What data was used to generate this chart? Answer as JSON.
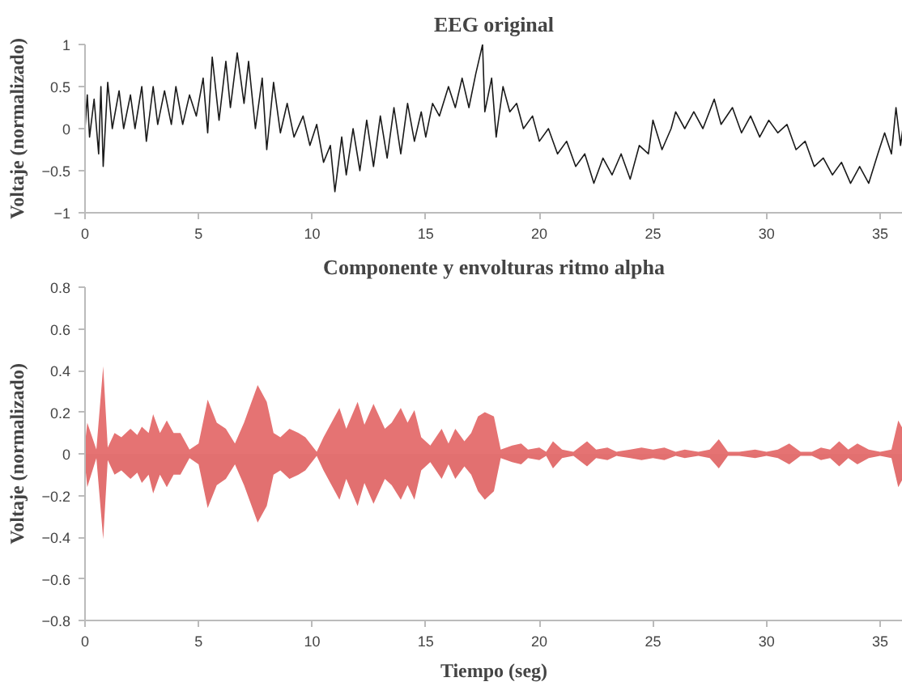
{
  "chart_data": [
    {
      "type": "line",
      "title": "EEG original",
      "ylabel": "Voltaje (normalizado)",
      "xlim": [
        0,
        36
      ],
      "ylim": [
        -1,
        1
      ],
      "xticks": [
        0,
        5,
        10,
        15,
        20,
        25,
        30,
        35
      ],
      "yticks": [
        -1,
        -0.5,
        0,
        0.5,
        1
      ],
      "grid": false,
      "marker": "none",
      "line_style": "solid",
      "series": [
        {
          "color": "#1a1a1a",
          "x": [
            0,
            0.1,
            0.2,
            0.4,
            0.6,
            0.7,
            0.8,
            1.0,
            1.2,
            1.5,
            1.7,
            2.0,
            2.2,
            2.5,
            2.7,
            3.0,
            3.2,
            3.5,
            3.8,
            4.0,
            4.3,
            4.6,
            4.9,
            5.2,
            5.4,
            5.6,
            5.9,
            6.2,
            6.4,
            6.7,
            7.0,
            7.2,
            7.5,
            7.8,
            8.0,
            8.3,
            8.6,
            8.9,
            9.2,
            9.6,
            9.9,
            10.2,
            10.5,
            10.8,
            11.0,
            11.3,
            11.5,
            11.8,
            12.1,
            12.4,
            12.7,
            13.0,
            13.3,
            13.6,
            13.9,
            14.2,
            14.5,
            14.8,
            15.0,
            15.3,
            15.6,
            16.0,
            16.3,
            16.6,
            16.9,
            17.2,
            17.5,
            17.6,
            17.9,
            18.1,
            18.4,
            18.7,
            19.0,
            19.3,
            19.7,
            20.0,
            20.4,
            20.8,
            21.2,
            21.6,
            22.0,
            22.4,
            22.8,
            23.2,
            23.6,
            24.0,
            24.4,
            24.8,
            25.0,
            25.4,
            25.8,
            26.0,
            26.4,
            26.8,
            27.2,
            27.7,
            28.0,
            28.5,
            28.9,
            29.3,
            29.7,
            30.1,
            30.5,
            30.9,
            31.3,
            31.7,
            32.1,
            32.5,
            32.9,
            33.3,
            33.7,
            34.1,
            34.5,
            34.9,
            35.2,
            35.5,
            35.7,
            35.9,
            36.0
          ],
          "values": [
            0.0,
            0.4,
            -0.1,
            0.35,
            -0.3,
            0.5,
            -0.45,
            0.55,
            0.0,
            0.45,
            0.0,
            0.4,
            0.0,
            0.5,
            -0.15,
            0.5,
            0.05,
            0.45,
            0.05,
            0.5,
            0.05,
            0.4,
            0.15,
            0.6,
            -0.05,
            0.85,
            0.1,
            0.8,
            0.25,
            0.9,
            0.3,
            0.8,
            0.0,
            0.6,
            -0.25,
            0.55,
            -0.05,
            0.3,
            -0.1,
            0.15,
            -0.2,
            0.05,
            -0.4,
            -0.2,
            -0.75,
            -0.1,
            -0.55,
            0.0,
            -0.5,
            0.1,
            -0.45,
            0.15,
            -0.35,
            0.25,
            -0.3,
            0.3,
            -0.15,
            0.2,
            -0.1,
            0.3,
            0.15,
            0.5,
            0.25,
            0.6,
            0.25,
            0.65,
            1.0,
            0.2,
            0.6,
            -0.1,
            0.5,
            0.2,
            0.3,
            0.0,
            0.15,
            -0.15,
            0.0,
            -0.3,
            -0.15,
            -0.45,
            -0.3,
            -0.65,
            -0.35,
            -0.55,
            -0.3,
            -0.6,
            -0.2,
            -0.3,
            0.1,
            -0.25,
            0.0,
            0.2,
            0.0,
            0.2,
            0.0,
            0.35,
            0.05,
            0.25,
            -0.05,
            0.15,
            -0.1,
            0.1,
            -0.05,
            0.05,
            -0.25,
            -0.15,
            -0.45,
            -0.35,
            -0.55,
            -0.4,
            -0.65,
            -0.45,
            -0.65,
            -0.3,
            -0.05,
            -0.3,
            0.25,
            -0.2,
            0.0
          ]
        }
      ]
    },
    {
      "type": "area",
      "title": "Componente y envolturas ritmo alpha",
      "xlabel": "Tiempo (seg)",
      "ylabel": "Voltaje (normalizado)",
      "xlim": [
        0,
        36
      ],
      "ylim": [
        -0.8,
        0.8
      ],
      "xticks": [
        0,
        5,
        10,
        15,
        20,
        25,
        30,
        35
      ],
      "yticks": [
        -0.8,
        -0.6,
        -0.4,
        -0.2,
        0,
        0.2,
        0.4,
        0.6,
        0.8
      ],
      "grid": false,
      "x": [
        0,
        0.1,
        0.5,
        0.8,
        1.0,
        1.3,
        1.6,
        2.0,
        2.3,
        2.5,
        2.8,
        3.0,
        3.3,
        3.6,
        3.9,
        4.2,
        4.6,
        5.0,
        5.4,
        5.8,
        6.2,
        6.6,
        7.0,
        7.6,
        8.0,
        8.3,
        8.6,
        9.0,
        9.4,
        9.7,
        10.2,
        10.5,
        11.2,
        11.5,
        12.0,
        12.3,
        12.7,
        13.2,
        13.5,
        13.9,
        14.2,
        14.5,
        14.8,
        15.2,
        15.7,
        16.0,
        16.3,
        16.7,
        17.0,
        17.3,
        17.6,
        18.0,
        18.3,
        18.8,
        19.2,
        19.5,
        20.0,
        20.3,
        20.6,
        21.0,
        21.5,
        22.1,
        22.5,
        23.0,
        23.4,
        24.0,
        24.5,
        25.0,
        25.5,
        26.0,
        26.4,
        27.0,
        27.5,
        27.9,
        28.3,
        28.8,
        29.5,
        30.0,
        30.5,
        31.0,
        31.5,
        32.0,
        32.4,
        32.8,
        33.2,
        33.6,
        34.0,
        34.5,
        35.0,
        35.5,
        35.8,
        36.0
      ],
      "series": [
        {
          "color": "#e57373",
          "values": [
            0.05,
            0.15,
            0.02,
            0.42,
            0.03,
            0.1,
            0.08,
            0.12,
            0.09,
            0.13,
            0.1,
            0.19,
            0.1,
            0.16,
            0.1,
            0.1,
            0.02,
            0.05,
            0.26,
            0.15,
            0.12,
            0.05,
            0.15,
            0.33,
            0.25,
            0.1,
            0.08,
            0.12,
            0.1,
            0.08,
            0.01,
            0.08,
            0.22,
            0.12,
            0.25,
            0.14,
            0.24,
            0.12,
            0.15,
            0.22,
            0.15,
            0.21,
            0.08,
            0.04,
            0.12,
            0.05,
            0.12,
            0.06,
            0.1,
            0.18,
            0.2,
            0.18,
            0.02,
            0.04,
            0.05,
            0.02,
            0.03,
            0.01,
            0.06,
            0.02,
            0.01,
            0.06,
            0.02,
            0.03,
            0.01,
            0.02,
            0.03,
            0.02,
            0.03,
            0.01,
            0.02,
            0.01,
            0.02,
            0.07,
            0.01,
            0.01,
            0.02,
            0.01,
            0.02,
            0.05,
            0.01,
            0.01,
            0.03,
            0.02,
            0.06,
            0.02,
            0.05,
            0.02,
            0.01,
            0.02,
            0.16,
            0.12
          ]
        },
        {
          "color": "#e27070",
          "values": [
            -0.05,
            -0.16,
            -0.02,
            -0.41,
            -0.03,
            -0.1,
            -0.08,
            -0.12,
            -0.09,
            -0.14,
            -0.1,
            -0.19,
            -0.1,
            -0.16,
            -0.1,
            -0.1,
            -0.02,
            -0.05,
            -0.26,
            -0.15,
            -0.12,
            -0.05,
            -0.15,
            -0.33,
            -0.25,
            -0.1,
            -0.08,
            -0.12,
            -0.1,
            -0.08,
            -0.01,
            -0.08,
            -0.22,
            -0.12,
            -0.25,
            -0.14,
            -0.24,
            -0.12,
            -0.15,
            -0.22,
            -0.15,
            -0.22,
            -0.08,
            -0.04,
            -0.12,
            -0.05,
            -0.12,
            -0.06,
            -0.1,
            -0.18,
            -0.22,
            -0.18,
            -0.02,
            -0.04,
            -0.05,
            -0.02,
            -0.03,
            -0.01,
            -0.07,
            -0.02,
            -0.01,
            -0.06,
            -0.02,
            -0.03,
            -0.01,
            -0.02,
            -0.03,
            -0.02,
            -0.03,
            -0.01,
            -0.02,
            -0.01,
            -0.02,
            -0.07,
            -0.01,
            -0.01,
            -0.02,
            -0.01,
            -0.02,
            -0.05,
            -0.01,
            -0.01,
            -0.03,
            -0.02,
            -0.06,
            -0.02,
            -0.05,
            -0.02,
            -0.01,
            -0.02,
            -0.16,
            -0.12
          ]
        }
      ]
    }
  ]
}
